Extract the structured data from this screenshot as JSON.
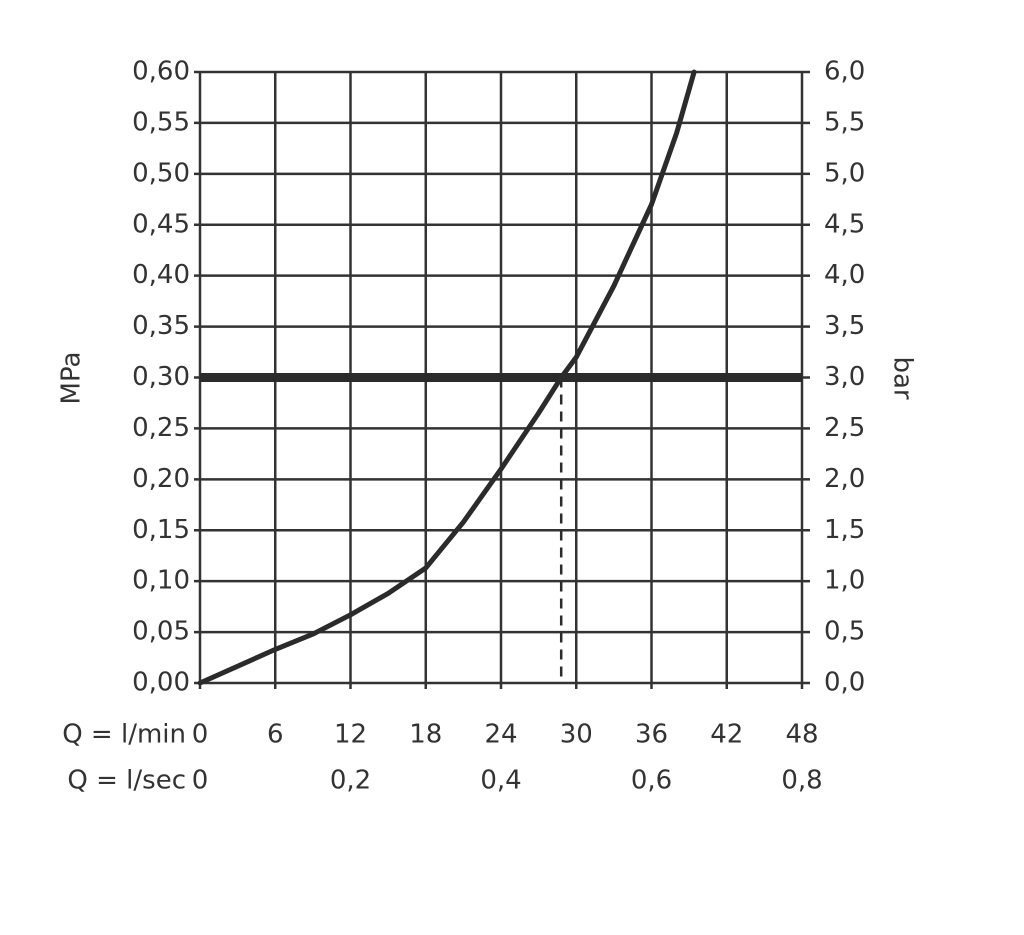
{
  "chart_data": {
    "type": "line",
    "ylabel": "MPa",
    "y2label": "bar",
    "xlabel": "Q = l/min",
    "x2label": "Q = l/sec",
    "xlim": [
      0,
      48
    ],
    "xticks": [
      0,
      6,
      12,
      18,
      24,
      30,
      36,
      42,
      48
    ],
    "x2lim": [
      0,
      0.8
    ],
    "x2ticks": [
      0,
      {
        "value": 0.2,
        "label": "0,2"
      },
      {
        "value": 0.4,
        "label": "0,4"
      },
      {
        "value": 0.6,
        "label": "0,6"
      },
      {
        "value": 0.8,
        "label": "0,8"
      }
    ],
    "ylim": [
      0,
      0.6
    ],
    "yticks": [
      {
        "value": 0,
        "label": "0,00"
      },
      {
        "value": 0.05,
        "label": "0,05"
      },
      {
        "value": 0.1,
        "label": "0,10"
      },
      {
        "value": 0.15,
        "label": "0,15"
      },
      {
        "value": 0.2,
        "label": "0,20"
      },
      {
        "value": 0.25,
        "label": "0,25"
      },
      {
        "value": 0.3,
        "label": "0,30"
      },
      {
        "value": 0.35,
        "label": "0,35"
      },
      {
        "value": 0.4,
        "label": "0,40"
      },
      {
        "value": 0.45,
        "label": "0,45"
      },
      {
        "value": 0.5,
        "label": "0,50"
      },
      {
        "value": 0.55,
        "label": "0,55"
      },
      {
        "value": 0.6,
        "label": "0,60"
      }
    ],
    "y2lim": [
      0,
      6
    ],
    "y2ticks": [
      {
        "value": 0,
        "label": "0,0"
      },
      {
        "value": 0.5,
        "label": "0,5"
      },
      {
        "value": 1,
        "label": "1,0"
      },
      {
        "value": 1.5,
        "label": "1,5"
      },
      {
        "value": 2,
        "label": "2,0"
      },
      {
        "value": 2.5,
        "label": "2,5"
      },
      {
        "value": 3,
        "label": "3,0"
      },
      {
        "value": 3.5,
        "label": "3,5"
      },
      {
        "value": 4,
        "label": "4,0"
      },
      {
        "value": 4.5,
        "label": "4,5"
      },
      {
        "value": 5,
        "label": "5,0"
      },
      {
        "value": 5.5,
        "label": "5,5"
      },
      {
        "value": 6,
        "label": "6,0"
      }
    ],
    "grid": true,
    "color": "#2b2b2b",
    "x": [
      0,
      6,
      9,
      12,
      15,
      18,
      21,
      24,
      27,
      28.8,
      30,
      33,
      36,
      38,
      39.4
    ],
    "values": [
      0,
      0.033,
      0.048,
      0.067,
      0.088,
      0.113,
      0.158,
      0.21,
      0.265,
      0.3,
      0.32,
      0.39,
      0.47,
      0.54,
      0.6
    ],
    "reference_y": 0.3,
    "reference_x": 28.8
  }
}
